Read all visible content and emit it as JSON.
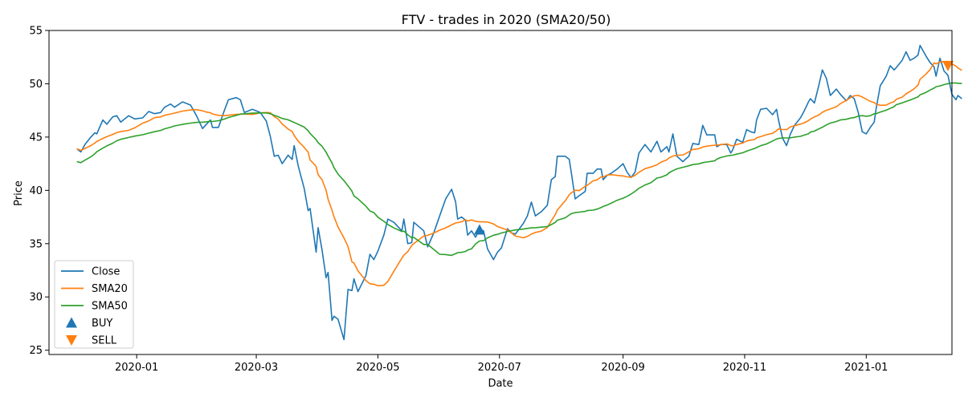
{
  "chart_data": {
    "type": "line",
    "title": "FTV - trades in 2020 (SMA20/50)",
    "xlabel": "Date",
    "ylabel": "Price",
    "ylim": [
      24.6,
      55.0
    ],
    "xlim": [
      "2019-11-18",
      "2021-02-13"
    ],
    "x_ticks": [
      "2020-01",
      "2020-03",
      "2020-05",
      "2020-07",
      "2020-09",
      "2020-11",
      "2021-01"
    ],
    "x_tick_dates": [
      "2020-01-01",
      "2020-03-01",
      "2020-05-01",
      "2020-07-01",
      "2020-09-01",
      "2020-11-01",
      "2021-01-01"
    ],
    "y_ticks": [
      25,
      30,
      35,
      40,
      45,
      50,
      55
    ],
    "grid": false,
    "legend_position": "lower-left",
    "colors": {
      "close": "#1f77b4",
      "sma20": "#ff7f0e",
      "sma50": "#2ca02c",
      "buy": "#1f77b4",
      "sell": "#ff7f0e"
    },
    "series": [
      {
        "name": "Close",
        "points": [
          [
            "2019-12-02",
            43.9
          ],
          [
            "2019-12-04",
            43.6
          ],
          [
            "2019-12-06",
            44.3
          ],
          [
            "2019-12-09",
            45.0
          ],
          [
            "2019-12-11",
            45.4
          ],
          [
            "2019-12-12",
            45.3
          ],
          [
            "2019-12-15",
            46.6
          ],
          [
            "2019-12-17",
            46.2
          ],
          [
            "2019-12-20",
            46.9
          ],
          [
            "2019-12-22",
            47.0
          ],
          [
            "2019-12-24",
            46.4
          ],
          [
            "2019-12-28",
            47.0
          ],
          [
            "2019-12-31",
            46.7
          ],
          [
            "2020-01-04",
            46.8
          ],
          [
            "2020-01-07",
            47.4
          ],
          [
            "2020-01-10",
            47.2
          ],
          [
            "2020-01-13",
            47.3
          ],
          [
            "2020-01-15",
            47.8
          ],
          [
            "2020-01-18",
            48.1
          ],
          [
            "2020-01-20",
            47.8
          ],
          [
            "2020-01-24",
            48.3
          ],
          [
            "2020-01-28",
            48.0
          ],
          [
            "2020-01-31",
            47.0
          ],
          [
            "2020-02-03",
            45.8
          ],
          [
            "2020-02-05",
            46.2
          ],
          [
            "2020-02-07",
            46.6
          ],
          [
            "2020-02-08",
            45.9
          ],
          [
            "2020-02-11",
            45.9
          ],
          [
            "2020-02-14",
            47.5
          ],
          [
            "2020-02-16",
            48.5
          ],
          [
            "2020-02-20",
            48.7
          ],
          [
            "2020-02-22",
            48.5
          ],
          [
            "2020-02-24",
            47.3
          ],
          [
            "2020-02-28",
            47.6
          ],
          [
            "2020-03-03",
            47.3
          ],
          [
            "2020-03-06",
            46.5
          ],
          [
            "2020-03-08",
            45.1
          ],
          [
            "2020-03-10",
            43.2
          ],
          [
            "2020-03-12",
            43.3
          ],
          [
            "2020-03-14",
            42.5
          ],
          [
            "2020-03-17",
            43.3
          ],
          [
            "2020-03-19",
            42.9
          ],
          [
            "2020-03-20",
            44.2
          ],
          [
            "2020-03-22",
            42.3
          ],
          [
            "2020-03-25",
            40.2
          ],
          [
            "2020-03-27",
            38.1
          ],
          [
            "2020-03-28",
            38.3
          ],
          [
            "2020-03-31",
            34.2
          ],
          [
            "2020-04-01",
            36.5
          ],
          [
            "2020-04-03",
            34.4
          ],
          [
            "2020-04-05",
            31.8
          ],
          [
            "2020-04-06",
            32.3
          ],
          [
            "2020-04-08",
            27.8
          ],
          [
            "2020-04-09",
            28.2
          ],
          [
            "2020-04-11",
            27.9
          ],
          [
            "2020-04-14",
            26.0
          ],
          [
            "2020-04-16",
            30.7
          ],
          [
            "2020-04-18",
            30.6
          ],
          [
            "2020-04-19",
            31.7
          ],
          [
            "2020-04-21",
            30.5
          ],
          [
            "2020-04-25",
            32.0
          ],
          [
            "2020-04-27",
            34.0
          ],
          [
            "2020-04-29",
            33.5
          ],
          [
            "2020-05-01",
            34.3
          ],
          [
            "2020-05-04",
            35.8
          ],
          [
            "2020-05-06",
            37.3
          ],
          [
            "2020-05-09",
            37.0
          ],
          [
            "2020-05-13",
            36.2
          ],
          [
            "2020-05-14",
            37.3
          ],
          [
            "2020-05-16",
            35.0
          ],
          [
            "2020-05-18",
            35.1
          ],
          [
            "2020-05-19",
            37.0
          ],
          [
            "2020-05-24",
            36.2
          ],
          [
            "2020-05-26",
            34.7
          ],
          [
            "2020-05-29",
            36.0
          ],
          [
            "2020-06-01",
            37.6
          ],
          [
            "2020-06-04",
            39.2
          ],
          [
            "2020-06-07",
            40.1
          ],
          [
            "2020-06-09",
            38.9
          ],
          [
            "2020-06-10",
            37.3
          ],
          [
            "2020-06-12",
            37.5
          ],
          [
            "2020-06-14",
            37.2
          ],
          [
            "2020-06-15",
            35.8
          ],
          [
            "2020-06-17",
            36.2
          ],
          [
            "2020-06-19",
            35.6
          ],
          [
            "2020-06-21",
            36.3
          ],
          [
            "2020-06-23",
            36.2
          ],
          [
            "2020-06-25",
            34.5
          ],
          [
            "2020-06-28",
            33.5
          ],
          [
            "2020-06-30",
            34.2
          ],
          [
            "2020-07-02",
            34.6
          ],
          [
            "2020-07-05",
            36.4
          ],
          [
            "2020-07-07",
            36.0
          ],
          [
            "2020-07-09",
            35.9
          ],
          [
            "2020-07-13",
            36.9
          ],
          [
            "2020-07-15",
            37.6
          ],
          [
            "2020-07-17",
            38.9
          ],
          [
            "2020-07-19",
            37.6
          ],
          [
            "2020-07-22",
            38.0
          ],
          [
            "2020-07-25",
            38.6
          ],
          [
            "2020-07-27",
            41.0
          ],
          [
            "2020-07-29",
            41.3
          ],
          [
            "2020-07-30",
            43.2
          ],
          [
            "2020-08-03",
            43.2
          ],
          [
            "2020-08-05",
            42.9
          ],
          [
            "2020-08-06",
            41.7
          ],
          [
            "2020-08-08",
            39.2
          ],
          [
            "2020-08-10",
            39.5
          ],
          [
            "2020-08-13",
            39.9
          ],
          [
            "2020-08-14",
            41.6
          ],
          [
            "2020-08-17",
            41.6
          ],
          [
            "2020-08-19",
            42.0
          ],
          [
            "2020-08-21",
            42.0
          ],
          [
            "2020-08-22",
            41.0
          ],
          [
            "2020-08-24",
            41.4
          ],
          [
            "2020-08-26",
            41.6
          ],
          [
            "2020-08-29",
            42.0
          ],
          [
            "2020-09-01",
            42.5
          ],
          [
            "2020-09-03",
            41.7
          ],
          [
            "2020-09-05",
            41.2
          ],
          [
            "2020-09-07",
            41.7
          ],
          [
            "2020-09-09",
            43.5
          ],
          [
            "2020-09-12",
            44.3
          ],
          [
            "2020-09-15",
            43.6
          ],
          [
            "2020-09-18",
            44.6
          ],
          [
            "2020-09-20",
            43.6
          ],
          [
            "2020-09-23",
            44.1
          ],
          [
            "2020-09-24",
            43.6
          ],
          [
            "2020-09-26",
            45.3
          ],
          [
            "2020-09-28",
            43.2
          ],
          [
            "2020-10-01",
            42.7
          ],
          [
            "2020-10-04",
            43.2
          ],
          [
            "2020-10-06",
            44.4
          ],
          [
            "2020-10-09",
            44.3
          ],
          [
            "2020-10-11",
            46.1
          ],
          [
            "2020-10-13",
            45.2
          ],
          [
            "2020-10-17",
            45.2
          ],
          [
            "2020-10-18",
            44.1
          ],
          [
            "2020-10-20",
            44.3
          ],
          [
            "2020-10-23",
            44.3
          ],
          [
            "2020-10-25",
            43.5
          ],
          [
            "2020-10-26",
            43.8
          ],
          [
            "2020-10-28",
            44.8
          ],
          [
            "2020-10-31",
            44.5
          ],
          [
            "2020-11-02",
            45.7
          ],
          [
            "2020-11-04",
            45.5
          ],
          [
            "2020-11-06",
            45.4
          ],
          [
            "2020-11-07",
            46.6
          ],
          [
            "2020-11-09",
            47.6
          ],
          [
            "2020-11-12",
            47.7
          ],
          [
            "2020-11-15",
            47.1
          ],
          [
            "2020-11-17",
            47.6
          ],
          [
            "2020-11-18",
            46.6
          ],
          [
            "2020-11-20",
            44.9
          ],
          [
            "2020-11-22",
            44.2
          ],
          [
            "2020-11-24",
            45.3
          ],
          [
            "2020-11-26",
            46.1
          ],
          [
            "2020-11-29",
            46.8
          ],
          [
            "2020-12-01",
            47.5
          ],
          [
            "2020-12-03",
            48.3
          ],
          [
            "2020-12-04",
            48.6
          ],
          [
            "2020-12-06",
            48.2
          ],
          [
            "2020-12-08",
            49.7
          ],
          [
            "2020-12-10",
            51.3
          ],
          [
            "2020-12-12",
            50.5
          ],
          [
            "2020-12-14",
            48.9
          ],
          [
            "2020-12-17",
            49.5
          ],
          [
            "2020-12-19",
            49.0
          ],
          [
            "2020-12-22",
            48.4
          ],
          [
            "2020-12-24",
            48.9
          ],
          [
            "2020-12-26",
            48.6
          ],
          [
            "2020-12-28",
            47.3
          ],
          [
            "2020-12-30",
            45.5
          ],
          [
            "2021-01-01",
            45.3
          ],
          [
            "2021-01-03",
            45.9
          ],
          [
            "2021-01-05",
            46.4
          ],
          [
            "2021-01-06",
            47.7
          ],
          [
            "2021-01-08",
            49.8
          ],
          [
            "2021-01-11",
            50.7
          ],
          [
            "2021-01-13",
            51.7
          ],
          [
            "2021-01-15",
            51.3
          ],
          [
            "2021-01-16",
            51.5
          ],
          [
            "2021-01-19",
            52.2
          ],
          [
            "2021-01-21",
            53.0
          ],
          [
            "2021-01-23",
            52.2
          ],
          [
            "2021-01-25",
            52.4
          ],
          [
            "2021-01-27",
            52.7
          ],
          [
            "2021-01-28",
            53.6
          ],
          [
            "2021-01-31",
            52.6
          ],
          [
            "2021-02-02",
            52.0
          ],
          [
            "2021-02-04",
            51.6
          ],
          [
            "2021-02-05",
            50.7
          ],
          [
            "2021-02-07",
            52.4
          ],
          [
            "2021-02-09",
            51.2
          ],
          [
            "2021-02-11",
            50.8
          ],
          [
            "2021-02-13",
            49.0
          ],
          [
            "2021-02-15",
            48.5
          ],
          [
            "2021-02-16",
            48.9
          ],
          [
            "2021-02-18",
            48.6
          ]
        ]
      }
    ]
  }
}
